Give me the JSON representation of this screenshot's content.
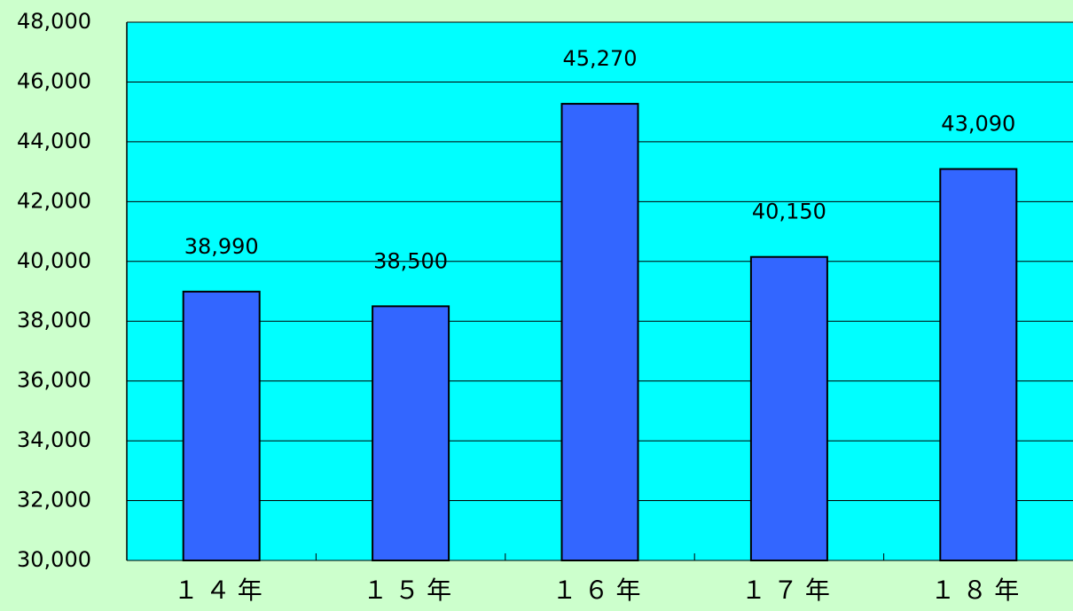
{
  "chart_data": {
    "type": "bar",
    "categories": [
      "１４年",
      "１５年",
      "１６年",
      "１７年",
      "１８年"
    ],
    "values": [
      38990,
      38500,
      45270,
      40150,
      43090
    ],
    "value_labels": [
      "38,990",
      "38,500",
      "45,270",
      "40,150",
      "43,090"
    ],
    "color": "#3366ff",
    "ylim": [
      30000,
      48000
    ],
    "yticks": [
      {
        "value": 30000,
        "label": "30,000"
      },
      {
        "value": 32000,
        "label": "32,000"
      },
      {
        "value": 34000,
        "label": "34,000"
      },
      {
        "value": 36000,
        "label": "36,000"
      },
      {
        "value": 38000,
        "label": "38,000"
      },
      {
        "value": 40000,
        "label": "40,000"
      },
      {
        "value": 42000,
        "label": "42,000"
      },
      {
        "value": 44000,
        "label": "44,000"
      },
      {
        "value": 46000,
        "label": "46,000"
      },
      {
        "value": 48000,
        "label": "48,000"
      }
    ],
    "grid": true
  }
}
